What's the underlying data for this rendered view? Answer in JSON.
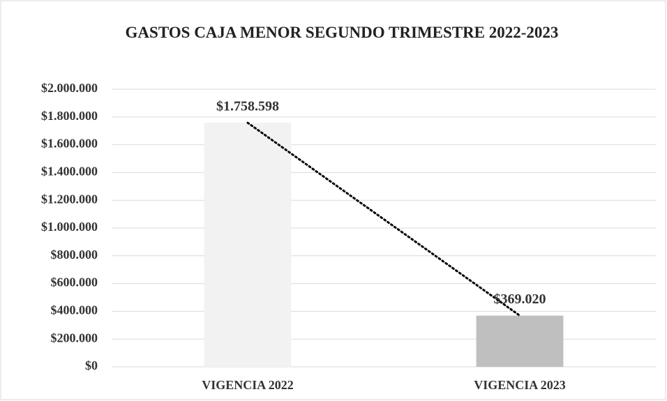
{
  "chart_data": {
    "type": "bar",
    "title": "GASTOS CAJA MENOR SEGUNDO TRIMESTRE 2022-2023",
    "categories": [
      "VIGENCIA 2022",
      "VIGENCIA 2023"
    ],
    "values": [
      1758598,
      369020
    ],
    "value_labels": [
      "$1.758.598",
      "$369.020"
    ],
    "colors": [
      "#f2f2f2",
      "#bfbfbf"
    ],
    "trendline": {
      "color": "#000000",
      "style": "dotted"
    },
    "ylim": [
      0,
      2000000
    ],
    "yticks": [
      {
        "value": 0,
        "label": "$0"
      },
      {
        "value": 200000,
        "label": "$200.000"
      },
      {
        "value": 400000,
        "label": "$400.000"
      },
      {
        "value": 600000,
        "label": "$600.000"
      },
      {
        "value": 800000,
        "label": "$800.000"
      },
      {
        "value": 1000000,
        "label": "$1.000.000"
      },
      {
        "value": 1200000,
        "label": "$1.200.000"
      },
      {
        "value": 1400000,
        "label": "$1.400.000"
      },
      {
        "value": 1600000,
        "label": "$1.600.000"
      },
      {
        "value": 1800000,
        "label": "$1.800.000"
      },
      {
        "value": 2000000,
        "label": "$2.000.000"
      }
    ],
    "grid": true
  }
}
